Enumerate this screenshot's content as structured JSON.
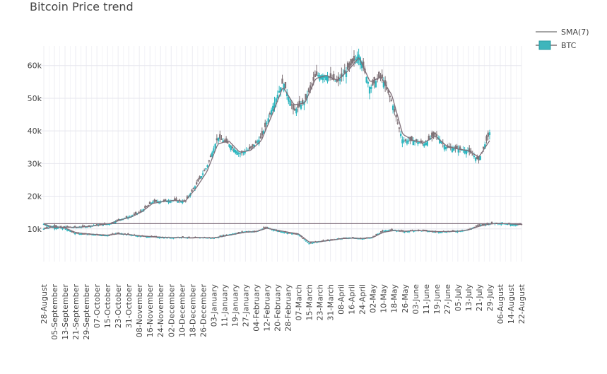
{
  "chart_data": {
    "type": "candlestick",
    "title": "Bitcoin Price trend",
    "xlabel": "",
    "ylabel": "",
    "ylim": [
      0,
      66000
    ],
    "grid": true,
    "legend_placement": "top-right",
    "legend": [
      {
        "name": "SMA(7)",
        "kind": "line",
        "color": "#888888"
      },
      {
        "name": "BTC",
        "kind": "candle",
        "color": "#3fb5bc"
      }
    ],
    "y_ticks": [
      {
        "value": 10000,
        "label": "10k"
      },
      {
        "value": 20000,
        "label": "20k"
      },
      {
        "value": 30000,
        "label": "30k"
      },
      {
        "value": 40000,
        "label": "40k"
      },
      {
        "value": 50000,
        "label": "50k"
      },
      {
        "value": 60000,
        "label": "60k"
      }
    ],
    "x_ticks": [
      "28-August",
      "05-September",
      "13-September",
      "21-September",
      "29-September",
      "07-October",
      "15-October",
      "23-October",
      "31-October",
      "08-November",
      "16-November",
      "24-November",
      "02-December",
      "10-December",
      "18-December",
      "26-December",
      "03-January",
      "11-January",
      "19-January",
      "27-January",
      "04-February",
      "12-February",
      "20-February",
      "28-February",
      "07-March",
      "15-March",
      "23-March",
      "31-March",
      "08-April",
      "16-April",
      "24-April",
      "02-May",
      "10-May",
      "18-May",
      "26-May",
      "03-June",
      "11-June",
      "19-June",
      "27-June",
      "05-July",
      "13-July",
      "21-July",
      "29-July",
      "06-August",
      "14-August",
      "22-August"
    ],
    "series": [
      {
        "name": "BTC",
        "kind": "candlestick",
        "x_range": [
          "28-August",
          "29-July"
        ],
        "close_keypoints": [
          11500,
          10300,
          10600,
          10500,
          10800,
          11300,
          11500,
          12900,
          13800,
          15500,
          18300,
          18500,
          18800,
          18300,
          23500,
          29000,
          38000,
          36000,
          33000,
          34500,
          38000,
          47000,
          55000,
          46000,
          49000,
          57000,
          57000,
          55000,
          59000,
          63500,
          53000,
          57000,
          49000,
          37000,
          37000,
          36000,
          39000,
          35000,
          34500,
          34000,
          31000,
          39500
        ],
        "ohlc_scale_note": null
      },
      {
        "name": "SMA(7)",
        "kind": "line",
        "x_range": [
          "28-August",
          "29-July"
        ],
        "values": [
          11500,
          10400,
          10500,
          10500,
          10700,
          11100,
          11600,
          12700,
          13600,
          15200,
          17800,
          18400,
          18700,
          18500,
          22500,
          27500,
          36000,
          37000,
          33500,
          34000,
          37000,
          45000,
          53500,
          48000,
          48500,
          56000,
          57000,
          55500,
          58500,
          62500,
          55000,
          56500,
          51000,
          39000,
          37000,
          36500,
          38500,
          35500,
          34500,
          34000,
          32000,
          37000
        ]
      },
      {
        "name": "",
        "kind": "candlestick",
        "x_range": [
          "28-August",
          "22-August"
        ],
        "close_keypoints": [
          10000,
          10900,
          10100,
          8600,
          8400,
          8200,
          8000,
          8700,
          8300,
          7800,
          7600,
          7400,
          7300,
          7500,
          7200,
          7400,
          7200,
          8000,
          8600,
          9200,
          9200,
          10500,
          9400,
          8800,
          8300,
          5600,
          6200,
          6600,
          7100,
          7300,
          7000,
          7500,
          9400,
          9700,
          9100,
          9600,
          9400,
          9100,
          9200,
          9300,
          9800,
          11100,
          11700,
          11800,
          11400,
          11300
        ],
        "ohlc_scale_note": null
      },
      {
        "name": "",
        "kind": "line",
        "x_range": [
          "28-August",
          "22-August"
        ],
        "values": [
          10000,
          10700,
          10300,
          8900,
          8500,
          8300,
          8100,
          8500,
          8300,
          7900,
          7700,
          7500,
          7350,
          7400,
          7250,
          7350,
          7250,
          7800,
          8400,
          9000,
          9200,
          10200,
          9600,
          9000,
          8500,
          6000,
          6100,
          6500,
          7000,
          7200,
          7100,
          7400,
          9000,
          9500,
          9300,
          9500,
          9400,
          9200,
          9200,
          9300,
          9700,
          10800,
          11500,
          11700,
          11500,
          11350
        ]
      },
      {
        "name": "",
        "kind": "hline",
        "value": 11600
      }
    ]
  }
}
